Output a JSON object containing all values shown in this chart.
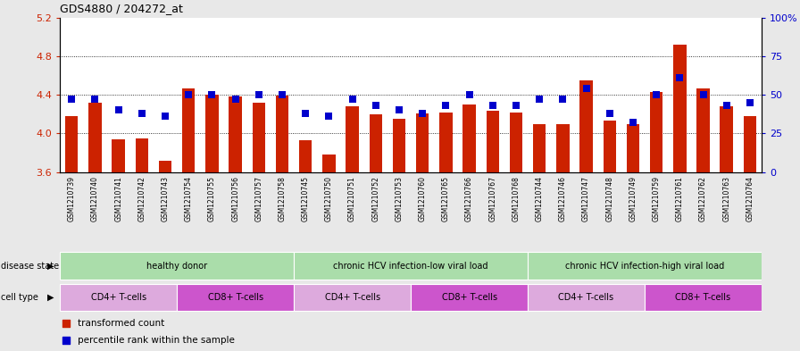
{
  "title": "GDS4880 / 204272_at",
  "samples": [
    "GSM1210739",
    "GSM1210740",
    "GSM1210741",
    "GSM1210742",
    "GSM1210743",
    "GSM1210754",
    "GSM1210755",
    "GSM1210756",
    "GSM1210757",
    "GSM1210758",
    "GSM1210745",
    "GSM1210750",
    "GSM1210751",
    "GSM1210752",
    "GSM1210753",
    "GSM1210760",
    "GSM1210765",
    "GSM1210766",
    "GSM1210767",
    "GSM1210768",
    "GSM1210744",
    "GSM1210746",
    "GSM1210747",
    "GSM1210748",
    "GSM1210749",
    "GSM1210759",
    "GSM1210761",
    "GSM1210762",
    "GSM1210763",
    "GSM1210764"
  ],
  "bar_values": [
    4.18,
    4.32,
    3.94,
    3.95,
    3.72,
    4.47,
    4.4,
    4.38,
    4.32,
    4.39,
    3.93,
    3.78,
    4.28,
    4.2,
    4.15,
    4.21,
    4.22,
    4.3,
    4.23,
    4.22,
    4.1,
    4.1,
    4.55,
    4.13,
    4.1,
    4.43,
    4.92,
    4.47,
    4.28,
    4.18
  ],
  "dot_values_pct": [
    47,
    47,
    40,
    38,
    36,
    50,
    50,
    47,
    50,
    50,
    38,
    36,
    47,
    43,
    40,
    38,
    43,
    50,
    43,
    43,
    47,
    47,
    54,
    38,
    32,
    50,
    61,
    50,
    43,
    45
  ],
  "ylim_left": [
    3.6,
    5.2
  ],
  "ylim_right": [
    0,
    100
  ],
  "yticks_left": [
    3.6,
    4.0,
    4.4,
    4.8,
    5.2
  ],
  "yticks_right": [
    0,
    25,
    50,
    75,
    100
  ],
  "ytick_labels_right": [
    "0",
    "25",
    "50",
    "75",
    "100%"
  ],
  "bar_color": "#cc2200",
  "dot_color": "#0000cc",
  "bar_baseline": 3.6,
  "disease_state_groups": [
    {
      "label": "healthy donor",
      "start": 0,
      "end": 9
    },
    {
      "label": "chronic HCV infection-low viral load",
      "start": 10,
      "end": 19
    },
    {
      "label": "chronic HCV infection-high viral load",
      "start": 20,
      "end": 29
    }
  ],
  "cell_type_groups": [
    {
      "label": "CD4+ T-cells",
      "start": 0,
      "end": 4,
      "type": "CD4"
    },
    {
      "label": "CD8+ T-cells",
      "start": 5,
      "end": 9,
      "type": "CD8"
    },
    {
      "label": "CD4+ T-cells",
      "start": 10,
      "end": 14,
      "type": "CD4"
    },
    {
      "label": "CD8+ T-cells",
      "start": 15,
      "end": 19,
      "type": "CD8"
    },
    {
      "label": "CD4+ T-cells",
      "start": 20,
      "end": 24,
      "type": "CD4"
    },
    {
      "label": "CD8+ T-cells",
      "start": 25,
      "end": 29,
      "type": "CD8"
    }
  ],
  "disease_state_label": "disease state",
  "cell_type_label": "cell type",
  "legend_items": [
    {
      "label": "transformed count",
      "color": "#cc2200"
    },
    {
      "label": "percentile rank within the sample",
      "color": "#0000cc"
    }
  ],
  "ds_color": "#aaddaa",
  "cd4_color": "#ddaadd",
  "cd8_color": "#cc55cc",
  "grid_yticks": [
    4.0,
    4.4,
    4.8
  ],
  "fig_bg": "#e8e8e8",
  "plot_bg": "#ffffff",
  "xtick_area_bg": "#cccccc"
}
